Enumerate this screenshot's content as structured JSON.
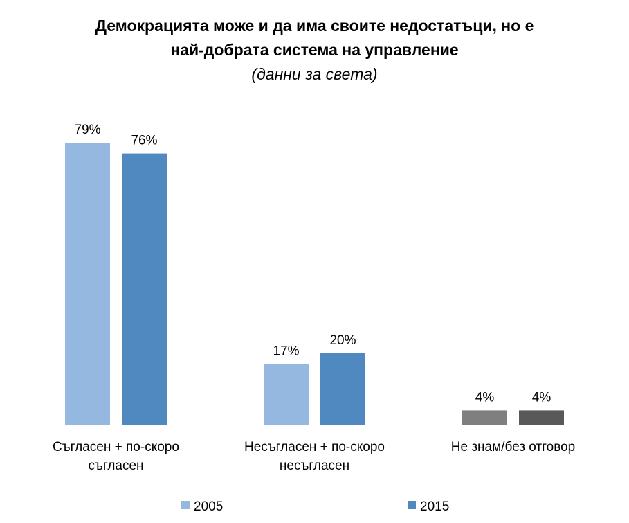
{
  "chart_data": {
    "type": "bar",
    "title_line1": "Демокрацията може и да има своите недостатъци, но е",
    "title_line2": "най-добрата система на управление",
    "subtitle": "(данни за света)",
    "categories": [
      "Съгласен + по-скоро съгласен",
      "Несъгласен + по-скоро несъгласен",
      "Не знам/без отговор"
    ],
    "category_lines": [
      [
        "Съгласен + по-скоро",
        "съгласен"
      ],
      [
        "Несъгласен + по-скоро",
        "несъгласен"
      ],
      [
        "Не знам/без отговор"
      ]
    ],
    "series": [
      {
        "name": "2005",
        "values": [
          79,
          17,
          4
        ],
        "colors": [
          "#95b8e0",
          "#95b8e0",
          "#7f7f7f"
        ]
      },
      {
        "name": "2015",
        "values": [
          76,
          20,
          4
        ],
        "colors": [
          "#4f89bf",
          "#4f89bf",
          "#595959"
        ]
      }
    ],
    "value_suffix": "%",
    "ylim": [
      0,
      82
    ],
    "grid": false,
    "legend_position": "bottom",
    "legend_colors": [
      "#95b8e0",
      "#4f89bf"
    ]
  }
}
